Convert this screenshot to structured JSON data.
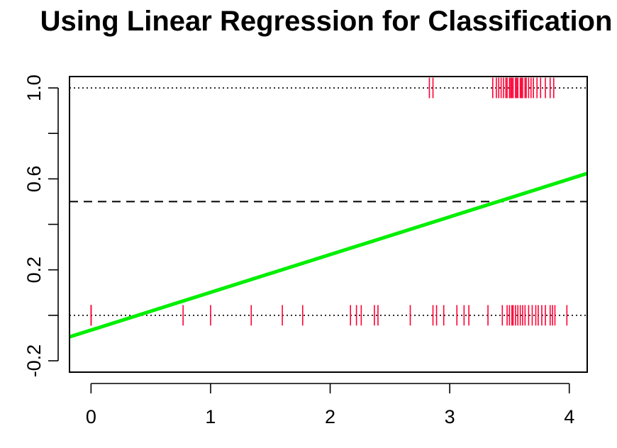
{
  "chart_data": {
    "type": "scatter",
    "title": "Using Linear Regression for Classification",
    "xlabel": "",
    "ylabel": "",
    "xlim": [
      -0.18,
      4.15
    ],
    "ylim": [
      -0.25,
      1.05
    ],
    "x_ticks": [
      0,
      1,
      2,
      3,
      4
    ],
    "x_tick_labels": [
      "0",
      "1",
      "2",
      "3",
      "4"
    ],
    "y_ticks": [
      -0.2,
      0,
      0.2,
      0.4,
      0.6,
      0.8,
      1.0
    ],
    "y_tick_labels": [
      "-0.2",
      "",
      "0.2",
      "",
      "0.6",
      "",
      "1.0"
    ],
    "grid": false,
    "reference_lines": [
      {
        "y": 1.0,
        "style": "dotted",
        "color": "#000000"
      },
      {
        "y": 0.0,
        "style": "dotted",
        "color": "#000000"
      },
      {
        "y": 0.5,
        "style": "dashed",
        "color": "#000000"
      }
    ],
    "fit_line": {
      "intercept": -0.065,
      "slope": 0.166,
      "color": "#00ee00"
    },
    "rug_color": "#ff0033",
    "rug_half_height": 0.045,
    "series": [
      {
        "y": 0,
        "x": [
          0,
          0,
          0,
          0,
          0,
          0.77,
          1.0,
          1.34,
          1.6,
          1.77,
          2.17,
          2.22,
          2.26,
          2.37,
          2.4,
          2.67,
          2.86,
          2.89,
          2.95,
          3.06,
          3.12,
          3.16,
          3.32,
          3.44,
          3.48,
          3.5,
          3.52,
          3.53,
          3.55,
          3.57,
          3.59,
          3.61,
          3.63,
          3.66,
          3.69,
          3.72,
          3.74,
          3.77,
          3.8,
          3.84,
          3.86,
          3.88,
          3.98
        ]
      },
      {
        "y": 1,
        "x": [
          2.83,
          2.86,
          3.36,
          3.39,
          3.41,
          3.43,
          3.45,
          3.47,
          3.48,
          3.5,
          3.51,
          3.52,
          3.53,
          3.55,
          3.56,
          3.57,
          3.59,
          3.6,
          3.61,
          3.63,
          3.64,
          3.66,
          3.68,
          3.7,
          3.73,
          3.76,
          3.8,
          3.84,
          3.87
        ]
      }
    ]
  }
}
